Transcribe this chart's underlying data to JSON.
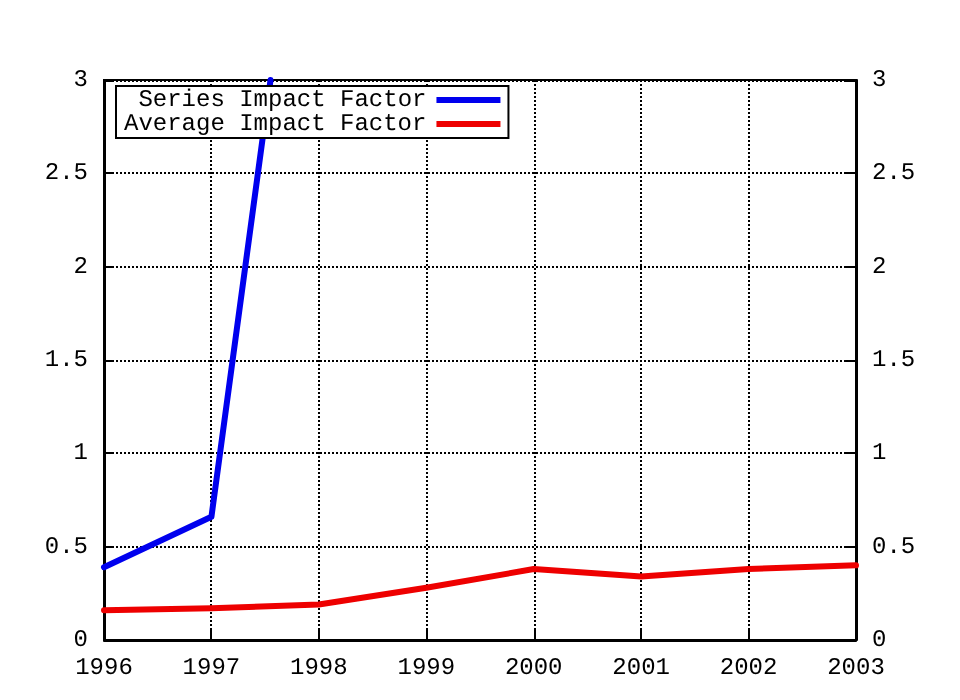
{
  "chart_data": {
    "type": "line",
    "x": [
      1996,
      1997,
      1998,
      1999,
      2000,
      2001,
      2002,
      2003
    ],
    "series": [
      {
        "name": "Series Impact Factor",
        "color": "#0000ee",
        "x": [
          1996,
          1997,
          1997.55
        ],
        "values": [
          0.39,
          0.66,
          3
        ]
      },
      {
        "name": "Average Impact Factor",
        "color": "#ee0000",
        "values": [
          0.16,
          0.17,
          0.19,
          0.28,
          0.38,
          0.34,
          0.38,
          0.4
        ]
      }
    ],
    "xlim": [
      1996,
      2003
    ],
    "xticks": [
      1996,
      1997,
      1998,
      1999,
      2000,
      2001,
      2002,
      2003
    ],
    "ylim": [
      0,
      3
    ],
    "yticks": [
      0,
      0.5,
      1,
      1.5,
      2,
      2.5,
      3
    ],
    "y2lim": [
      0,
      3
    ],
    "y2ticks": [
      0,
      0.5,
      1,
      1.5,
      2,
      2.5,
      3
    ],
    "grid": true,
    "legend": "top left",
    "marker": "none",
    "line_style": "solid"
  }
}
